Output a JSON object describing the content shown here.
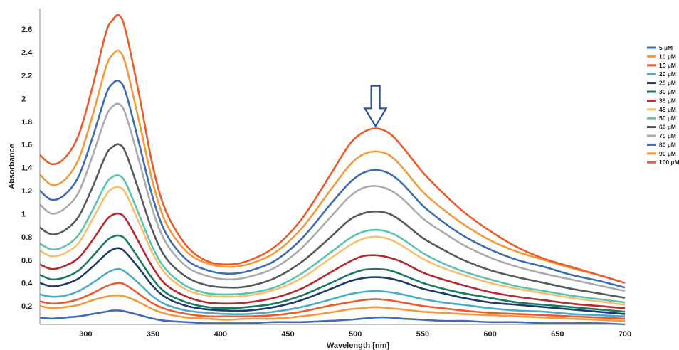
{
  "chart_data": {
    "type": "line",
    "title": "",
    "xlabel": "Wavelength [nm]",
    "ylabel": "Absorbance",
    "xlim": [
      266,
      700
    ],
    "ylim": [
      0.04,
      2.78
    ],
    "x_ticks": [
      300,
      350,
      400,
      450,
      500,
      550,
      600,
      650,
      700
    ],
    "y_ticks": [
      0.2,
      0.4,
      0.6,
      0.8,
      1,
      1.2,
      1.4,
      1.6,
      1.8,
      2,
      2.2,
      2.4,
      2.6
    ],
    "grid": false,
    "legend_position": "right",
    "annotation": "down-arrow",
    "annotation_x": 515,
    "annotation_y_top": 2.11,
    "annotation_y_bottom": 1.76,
    "x": [
      266,
      275,
      285,
      295,
      305,
      315,
      320,
      325,
      330,
      340,
      350,
      360,
      375,
      390,
      405,
      420,
      440,
      460,
      480,
      495,
      505,
      515,
      525,
      535,
      550,
      565,
      580,
      600,
      620,
      640,
      660,
      680,
      700
    ],
    "series": [
      {
        "name": "5 µM",
        "color": "#3d6cb5",
        "values": [
          0.1,
          0.09,
          0.1,
          0.11,
          0.13,
          0.15,
          0.16,
          0.16,
          0.15,
          0.12,
          0.09,
          0.07,
          0.06,
          0.05,
          0.05,
          0.05,
          0.06,
          0.06,
          0.07,
          0.08,
          0.09,
          0.1,
          0.1,
          0.09,
          0.08,
          0.07,
          0.07,
          0.06,
          0.06,
          0.05,
          0.05,
          0.05,
          0.04
        ]
      },
      {
        "name": "10 µM",
        "color": "#f39a3c",
        "values": [
          0.2,
          0.18,
          0.19,
          0.21,
          0.25,
          0.28,
          0.29,
          0.29,
          0.28,
          0.23,
          0.17,
          0.13,
          0.1,
          0.09,
          0.08,
          0.09,
          0.09,
          0.11,
          0.14,
          0.17,
          0.18,
          0.19,
          0.18,
          0.17,
          0.15,
          0.14,
          0.13,
          0.12,
          0.11,
          0.1,
          0.09,
          0.08,
          0.07
        ]
      },
      {
        "name": "15 µM",
        "color": "#ef5a2a",
        "values": [
          0.24,
          0.22,
          0.23,
          0.26,
          0.31,
          0.37,
          0.39,
          0.4,
          0.38,
          0.3,
          0.22,
          0.17,
          0.13,
          0.11,
          0.11,
          0.11,
          0.12,
          0.15,
          0.2,
          0.23,
          0.25,
          0.26,
          0.25,
          0.23,
          0.2,
          0.18,
          0.16,
          0.14,
          0.13,
          0.12,
          0.11,
          0.1,
          0.09
        ]
      },
      {
        "name": "20 µM",
        "color": "#4bacc6",
        "values": [
          0.3,
          0.28,
          0.29,
          0.33,
          0.4,
          0.48,
          0.51,
          0.52,
          0.49,
          0.39,
          0.28,
          0.21,
          0.16,
          0.14,
          0.13,
          0.13,
          0.15,
          0.19,
          0.25,
          0.3,
          0.32,
          0.33,
          0.32,
          0.3,
          0.26,
          0.23,
          0.21,
          0.18,
          0.16,
          0.15,
          0.13,
          0.12,
          0.11
        ]
      },
      {
        "name": "25 µM",
        "color": "#1f3c6e",
        "values": [
          0.4,
          0.37,
          0.39,
          0.44,
          0.54,
          0.65,
          0.69,
          0.7,
          0.66,
          0.52,
          0.37,
          0.27,
          0.2,
          0.17,
          0.16,
          0.16,
          0.19,
          0.25,
          0.34,
          0.41,
          0.44,
          0.45,
          0.44,
          0.41,
          0.35,
          0.31,
          0.27,
          0.23,
          0.21,
          0.19,
          0.17,
          0.15,
          0.13
        ]
      },
      {
        "name": "30 µM",
        "color": "#1a7a5e",
        "values": [
          0.47,
          0.43,
          0.45,
          0.51,
          0.63,
          0.76,
          0.8,
          0.81,
          0.77,
          0.6,
          0.43,
          0.31,
          0.23,
          0.19,
          0.18,
          0.19,
          0.22,
          0.29,
          0.39,
          0.47,
          0.51,
          0.52,
          0.51,
          0.47,
          0.4,
          0.35,
          0.31,
          0.27,
          0.23,
          0.21,
          0.19,
          0.17,
          0.15
        ]
      },
      {
        "name": "35 µM",
        "color": "#b8282f",
        "values": [
          0.56,
          0.52,
          0.55,
          0.62,
          0.77,
          0.94,
          0.99,
          1.0,
          0.95,
          0.74,
          0.53,
          0.38,
          0.28,
          0.23,
          0.22,
          0.23,
          0.27,
          0.35,
          0.48,
          0.58,
          0.63,
          0.64,
          0.62,
          0.58,
          0.49,
          0.43,
          0.38,
          0.32,
          0.28,
          0.25,
          0.22,
          0.2,
          0.18
        ]
      },
      {
        "name": "45 µM",
        "color": "#f7c06e",
        "values": [
          0.68,
          0.63,
          0.66,
          0.75,
          0.95,
          1.16,
          1.22,
          1.23,
          1.17,
          0.91,
          0.65,
          0.47,
          0.34,
          0.29,
          0.28,
          0.29,
          0.34,
          0.44,
          0.6,
          0.72,
          0.78,
          0.8,
          0.78,
          0.72,
          0.61,
          0.53,
          0.47,
          0.4,
          0.35,
          0.31,
          0.27,
          0.24,
          0.21
        ]
      },
      {
        "name": "50 µM",
        "color": "#5cc3b3",
        "values": [
          0.74,
          0.69,
          0.72,
          0.82,
          1.03,
          1.26,
          1.32,
          1.33,
          1.26,
          0.98,
          0.7,
          0.51,
          0.37,
          0.31,
          0.3,
          0.31,
          0.36,
          0.48,
          0.65,
          0.78,
          0.84,
          0.86,
          0.84,
          0.78,
          0.66,
          0.57,
          0.5,
          0.43,
          0.37,
          0.33,
          0.29,
          0.26,
          0.23
        ]
      },
      {
        "name": "60 µM",
        "color": "#555a5f",
        "values": [
          0.88,
          0.82,
          0.86,
          0.98,
          1.23,
          1.51,
          1.58,
          1.6,
          1.52,
          1.18,
          0.84,
          0.61,
          0.45,
          0.38,
          0.36,
          0.37,
          0.44,
          0.58,
          0.78,
          0.94,
          1.0,
          1.02,
          1.0,
          0.93,
          0.79,
          0.69,
          0.6,
          0.51,
          0.45,
          0.4,
          0.35,
          0.31,
          0.27
        ]
      },
      {
        "name": "70 µM",
        "color": "#a9abae",
        "values": [
          1.08,
          1.0,
          1.05,
          1.19,
          1.5,
          1.84,
          1.93,
          1.95,
          1.85,
          1.44,
          1.02,
          0.74,
          0.54,
          0.46,
          0.43,
          0.45,
          0.53,
          0.7,
          0.95,
          1.14,
          1.22,
          1.24,
          1.21,
          1.13,
          0.96,
          0.84,
          0.73,
          0.62,
          0.54,
          0.48,
          0.43,
          0.38,
          0.33
        ]
      },
      {
        "name": "80 µM",
        "color": "#3d6cb5",
        "values": [
          1.2,
          1.12,
          1.17,
          1.33,
          1.66,
          2.03,
          2.13,
          2.15,
          2.04,
          1.59,
          1.13,
          0.82,
          0.6,
          0.51,
          0.48,
          0.5,
          0.59,
          0.78,
          1.06,
          1.26,
          1.35,
          1.38,
          1.35,
          1.26,
          1.07,
          0.93,
          0.81,
          0.69,
          0.6,
          0.54,
          0.47,
          0.42,
          0.36
        ]
      },
      {
        "name": "90 µM",
        "color": "#f39a3c",
        "values": [
          1.34,
          1.25,
          1.3,
          1.48,
          1.85,
          2.27,
          2.38,
          2.41,
          2.28,
          1.78,
          1.26,
          0.91,
          0.67,
          0.57,
          0.54,
          0.56,
          0.66,
          0.87,
          1.18,
          1.41,
          1.51,
          1.54,
          1.51,
          1.4,
          1.19,
          1.04,
          0.91,
          0.77,
          0.67,
          0.6,
          0.53,
          0.47,
          0.4
        ]
      },
      {
        "name": "100 µM",
        "color": "#ef5a2a",
        "values": [
          1.51,
          1.43,
          1.49,
          1.69,
          2.1,
          2.57,
          2.68,
          2.72,
          2.57,
          2.01,
          1.4,
          1.01,
          0.72,
          0.59,
          0.56,
          0.59,
          0.71,
          0.95,
          1.31,
          1.59,
          1.7,
          1.74,
          1.7,
          1.58,
          1.36,
          1.18,
          1.02,
          0.85,
          0.71,
          0.61,
          0.54,
          0.47,
          0.4
        ]
      }
    ]
  }
}
